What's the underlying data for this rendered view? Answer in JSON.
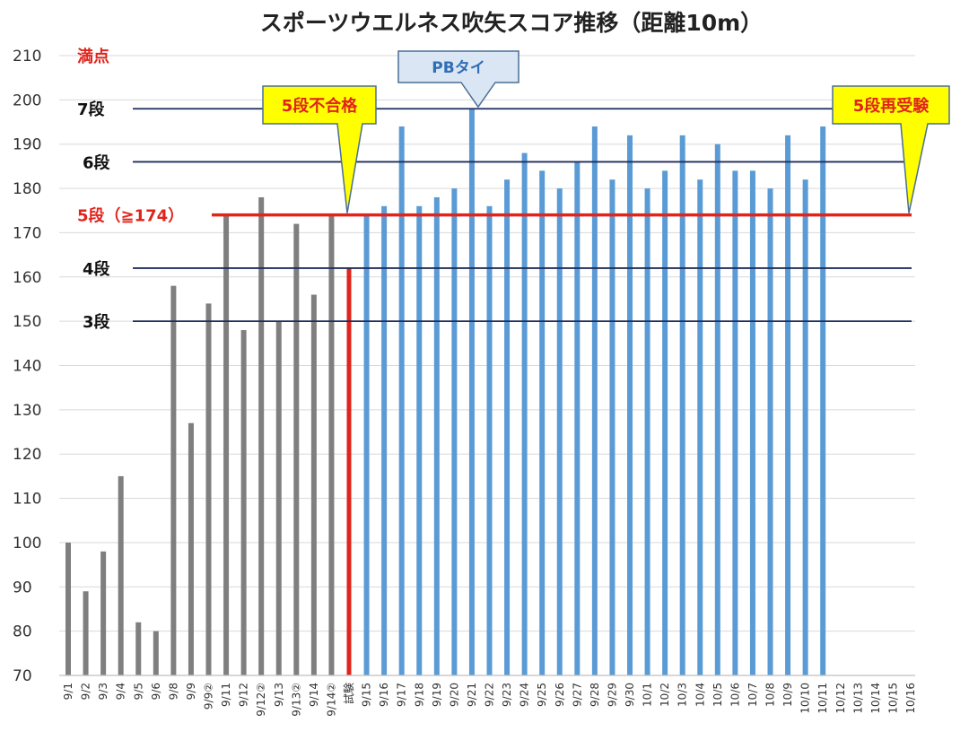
{
  "chart_data": {
    "type": "bar",
    "title": "スポーツウエルネス吹矢スコア推移（距離10m）",
    "ylim": [
      70,
      210
    ],
    "yticks": [
      70,
      80,
      90,
      100,
      110,
      120,
      130,
      140,
      150,
      160,
      170,
      180,
      190,
      200,
      210
    ],
    "grid": true,
    "categories": [
      "9/1",
      "9/2",
      "9/3",
      "9/4",
      "9/5",
      "9/6",
      "9/8",
      "9/9",
      "9/9②",
      "9/11",
      "9/12",
      "9/12②",
      "9/13",
      "9/13②",
      "9/14",
      "9/14②",
      "試験",
      "9/15",
      "9/16",
      "9/17",
      "9/18",
      "9/19",
      "9/20",
      "9/21",
      "9/22",
      "9/23",
      "9/24",
      "9/25",
      "9/26",
      "9/27",
      "9/28",
      "9/29",
      "9/30",
      "10/1",
      "10/2",
      "10/3",
      "10/4",
      "10/5",
      "10/6",
      "10/7",
      "10/8",
      "10/9",
      "10/10",
      "10/11",
      "10/12",
      "10/13",
      "10/14",
      "10/15",
      "10/16"
    ],
    "values": [
      100,
      89,
      98,
      115,
      82,
      80,
      158,
      127,
      154,
      174,
      148,
      178,
      150,
      172,
      156,
      174,
      162,
      174,
      176,
      194,
      176,
      178,
      180,
      198,
      176,
      182,
      188,
      184,
      180,
      186,
      194,
      182,
      192,
      180,
      184,
      192,
      182,
      190,
      184,
      184,
      180,
      192,
      182,
      194,
      null,
      null,
      null,
      null,
      null
    ],
    "bar_groups": [
      {
        "from": 0,
        "to": 15,
        "color": "#7f7f7f"
      },
      {
        "from": 16,
        "to": 16,
        "color": "#e0241c"
      },
      {
        "from": 17,
        "to": 48,
        "color": "#5b9bd5"
      }
    ],
    "reference_lines": [
      {
        "label": "満点",
        "value": 210,
        "color": "#e0241c",
        "line": false
      },
      {
        "label": "7段",
        "value": 198,
        "color": "#1f2d5c",
        "line": true
      },
      {
        "label": "6段",
        "value": 186,
        "color": "#1f2d5c",
        "line": true
      },
      {
        "label": "5段（≧174）",
        "value": 174,
        "color": "#e0241c",
        "line": true
      },
      {
        "label": "4段",
        "value": 162,
        "color": "#1f2d5c",
        "line": true
      },
      {
        "label": "3段",
        "value": 150,
        "color": "#1f2d5c",
        "line": true
      }
    ],
    "annotations": [
      {
        "text": "5段不合格",
        "style": "yellow-callout",
        "points_to": "試験"
      },
      {
        "text": "PBタイ",
        "style": "blue-callout",
        "points_to": "9/21"
      },
      {
        "text": "5段再受験",
        "style": "yellow-callout",
        "points_to": "10/16"
      }
    ]
  }
}
